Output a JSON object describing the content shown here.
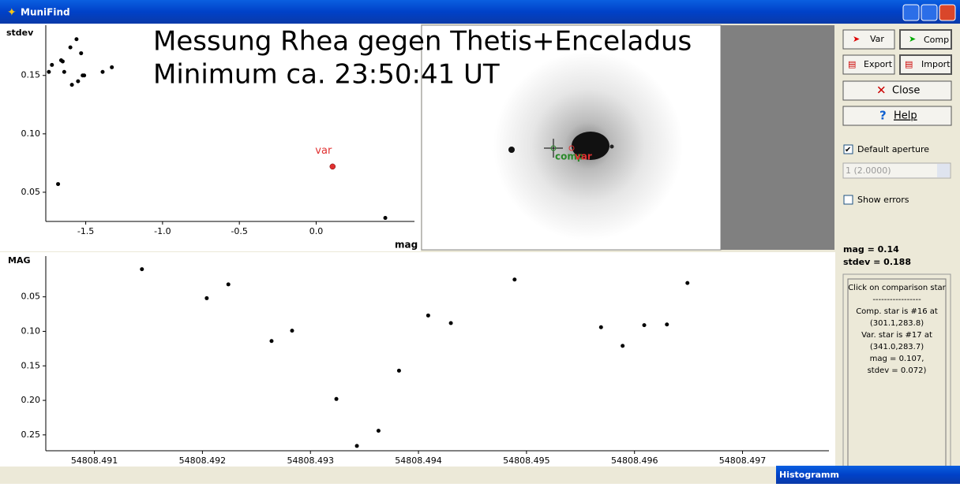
{
  "window": {
    "title": "MuniFind"
  },
  "chart_data": [
    {
      "type": "scatter",
      "annotations": [
        "Messung Rhea gegen Thetis+Enceladus",
        "Minimum ca. 23:50:41 UT"
      ],
      "y_label": "stdev",
      "x_label": "mag",
      "x": [
        -1.74,
        -1.72,
        -1.66,
        -1.65,
        -1.6,
        -1.56,
        -1.53,
        -1.64,
        -1.59,
        -1.55,
        -1.52,
        -1.51,
        -1.39,
        -1.33,
        -1.68,
        0.45
      ],
      "values": [
        0.153,
        0.159,
        0.163,
        0.162,
        0.174,
        0.181,
        0.169,
        0.153,
        0.142,
        0.145,
        0.15,
        0.15,
        0.153,
        0.157,
        0.057,
        0.028
      ],
      "color": "#000000",
      "highlight": {
        "label": "var",
        "x": 0.107,
        "value": 0.072,
        "color": "#e03030"
      },
      "xlim": [
        -1.76,
        0.64
      ],
      "ylim": [
        0.025,
        0.193
      ],
      "xticks": [
        -1.5,
        {
          "value": -1.0,
          "label": "-1.0"
        },
        -0.5,
        {
          "value": 0.0,
          "label": "0.0"
        }
      ],
      "yticks": [
        0.05,
        {
          "value": 0.1,
          "label": "0.10"
        },
        0.15
      ]
    },
    {
      "type": "scatter",
      "y_label": "MAG",
      "x": [
        54808.49144,
        54808.49204,
        54808.49224,
        54808.49264,
        54808.49283,
        54808.49324,
        54808.49343,
        54808.49363,
        54808.49382,
        54808.49409,
        54808.4943,
        54808.49489,
        54808.49569,
        54808.49589,
        54808.49609,
        54808.4963,
        54808.49649
      ],
      "values": [
        0.01,
        0.052,
        0.032,
        0.114,
        0.099,
        0.198,
        0.266,
        0.244,
        0.157,
        0.077,
        0.088,
        0.025,
        0.094,
        0.121,
        0.091,
        0.09,
        0.03
      ],
      "color": "#000000",
      "xlim": [
        54808.49055,
        54808.4978
      ],
      "ylim": [
        0.273,
        -0.009
      ],
      "xticks": [
        54808.491,
        54808.492,
        54808.493,
        54808.494,
        54808.495,
        54808.496,
        54808.497
      ],
      "yticks": [
        0.05,
        {
          "value": 0.1,
          "label": "0.10"
        },
        0.15,
        {
          "value": 0.2,
          "label": "0.20"
        },
        0.25
      ]
    }
  ],
  "image": {
    "labels": [
      "comp",
      "var"
    ]
  },
  "toolbar": {
    "buttons": [
      "Var",
      "Comp",
      "Export",
      "Import",
      "Close",
      "Help"
    ]
  },
  "options": {
    "default_aperture": "Default aperture",
    "aperture": "1 (2.0000)",
    "show_errors": "Show errors"
  },
  "readout": [
    "mag = 0.14",
    "stdev = 0.188"
  ],
  "info": [
    "Click on comparison star",
    "-----------------",
    "Comp. star is #16 at",
    "(301.1,283.8)",
    "Var. star is #17 at",
    "(341.0,283.7)",
    "mag = 0.107,",
    "stdev = 0.072)"
  ],
  "taskbar": "Histogramm"
}
